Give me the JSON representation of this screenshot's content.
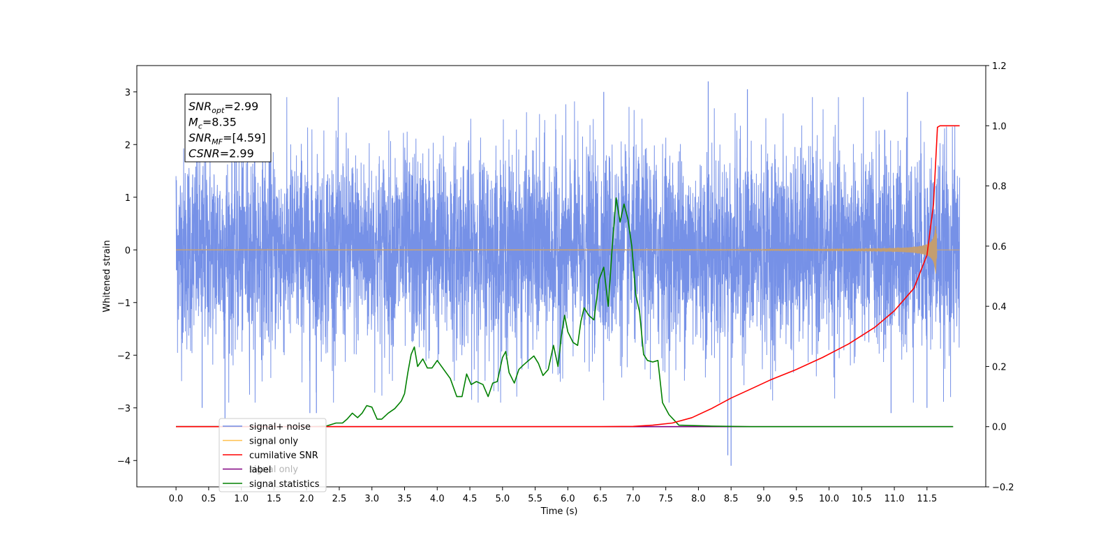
{
  "chart_data": {
    "type": "line",
    "title": "",
    "xlabel": "Time (s)",
    "ylabel": "Whitened strain",
    "y2label": "",
    "xlim": [
      -0.6,
      12.4
    ],
    "ylim": [
      -4.5,
      3.5
    ],
    "y2lim": [
      -0.2,
      1.2
    ],
    "xticks": [
      0.0,
      0.5,
      1.0,
      1.5,
      2.0,
      2.5,
      3.0,
      3.5,
      4.0,
      4.5,
      5.0,
      5.5,
      6.0,
      6.5,
      7.0,
      7.5,
      8.0,
      8.5,
      9.0,
      9.5,
      10.0,
      10.5,
      11.0,
      11.5
    ],
    "xtick_labels": [
      "0.0",
      "0.5",
      "1.0",
      "1.5",
      "2.0",
      "2.5",
      "3.0",
      "3.5",
      "4.0",
      "4.5",
      "5.0",
      "5.5",
      "6.0",
      "6.5",
      "7.0",
      "7.5",
      "8.0",
      "8.5",
      "9.0",
      "9.5",
      "10.0",
      "10.5",
      "11.0",
      "11.5"
    ],
    "yticks": [
      -4,
      -3,
      -2,
      -1,
      0,
      1,
      2,
      3
    ],
    "ytick_labels": [
      "−4",
      "−3",
      "−2",
      "−1",
      "0",
      "1",
      "2",
      "3"
    ],
    "y2ticks": [
      -0.2,
      0.0,
      0.2,
      0.4,
      0.6,
      0.8,
      1.0,
      1.2
    ],
    "y2tick_labels": [
      "−0.2",
      "0.0",
      "0.2",
      "0.4",
      "0.6",
      "0.8",
      "1.0",
      "1.2"
    ],
    "grid": false,
    "legend_position": "lower-left",
    "annotation": {
      "lines": [
        {
          "base": "SNR",
          "sub": "opt",
          "rest": "=2.99"
        },
        {
          "base": "M",
          "sub": "c",
          "rest": "=8.35"
        },
        {
          "base": "SNR",
          "sub": "MF",
          "rest": "=[4.59]"
        },
        {
          "base": "CSNR",
          "sub": "",
          "rest": "=2.99"
        }
      ]
    },
    "series": [
      {
        "name": "signal+ noise",
        "axis": "left",
        "color": "#6f8be6",
        "style": "noise",
        "x_range": [
          0.0,
          12.0
        ],
        "amplitude_envelope": [
          -2.6,
          2.6
        ],
        "extremes": [
          {
            "x": 0.75,
            "y": -3.2
          },
          {
            "x": 2.05,
            "y": -3.1
          },
          {
            "x": 2.15,
            "y": -3.1
          },
          {
            "x": 6.55,
            "y": 3.0
          },
          {
            "x": 8.15,
            "y": 3.2
          },
          {
            "x": 8.45,
            "y": -3.9
          },
          {
            "x": 8.5,
            "y": -4.1
          },
          {
            "x": 8.75,
            "y": 3.05
          },
          {
            "x": 11.2,
            "y": 3.0
          },
          {
            "x": 0.4,
            "y": -3.0
          },
          {
            "x": 10.95,
            "y": -3.1
          },
          {
            "x": 11.5,
            "y": -3.0
          }
        ]
      },
      {
        "name": "signal only",
        "axis": "left",
        "color": "#ffc04d",
        "style": "chirp",
        "x_range": [
          0.0,
          12.0
        ],
        "merger_time": 11.65,
        "peak_amplitude": 0.45
      },
      {
        "name": "cumilative SNR",
        "axis": "right",
        "color": "#ff0000",
        "x": [
          0.0,
          6.5,
          7.0,
          7.3,
          7.6,
          7.9,
          8.2,
          8.5,
          8.8,
          9.1,
          9.5,
          9.9,
          10.3,
          10.7,
          11.0,
          11.3,
          11.5,
          11.6,
          11.66,
          11.7,
          12.0
        ],
        "y": [
          0.0,
          0.0,
          0.001,
          0.005,
          0.012,
          0.03,
          0.06,
          0.095,
          0.125,
          0.155,
          0.19,
          0.23,
          0.275,
          0.33,
          0.385,
          0.46,
          0.57,
          0.74,
          0.995,
          1.0,
          1.0
        ]
      },
      {
        "name": "label",
        "axis": "right",
        "color": "#800080",
        "x": [
          0.0,
          11.9
        ],
        "y": [
          0.0,
          0.0
        ]
      },
      {
        "name": "signal statistics",
        "axis": "right",
        "color": "#008000",
        "x": [
          0.0,
          2.1,
          2.3,
          2.45,
          2.55,
          2.62,
          2.7,
          2.78,
          2.85,
          2.92,
          3.0,
          3.08,
          3.15,
          3.25,
          3.35,
          3.45,
          3.5,
          3.55,
          3.6,
          3.65,
          3.7,
          3.78,
          3.85,
          3.92,
          4.0,
          4.1,
          4.2,
          4.3,
          4.38,
          4.45,
          4.52,
          4.6,
          4.7,
          4.78,
          4.85,
          4.92,
          5.0,
          5.05,
          5.1,
          5.18,
          5.25,
          5.32,
          5.4,
          5.48,
          5.55,
          5.62,
          5.7,
          5.78,
          5.85,
          5.9,
          5.95,
          6.0,
          6.08,
          6.15,
          6.2,
          6.25,
          6.32,
          6.4,
          6.48,
          6.55,
          6.62,
          6.68,
          6.74,
          6.8,
          6.86,
          6.92,
          6.98,
          7.04,
          7.1,
          7.16,
          7.22,
          7.3,
          7.38,
          7.45,
          7.55,
          7.7,
          8.2,
          8.8,
          9.5,
          11.9
        ],
        "y": [
          0.0,
          0.0,
          0.002,
          0.012,
          0.012,
          0.025,
          0.045,
          0.03,
          0.045,
          0.07,
          0.065,
          0.025,
          0.025,
          0.045,
          0.06,
          0.085,
          0.11,
          0.18,
          0.24,
          0.265,
          0.2,
          0.225,
          0.195,
          0.195,
          0.22,
          0.19,
          0.16,
          0.1,
          0.1,
          0.175,
          0.14,
          0.15,
          0.14,
          0.1,
          0.145,
          0.15,
          0.23,
          0.25,
          0.18,
          0.145,
          0.19,
          0.205,
          0.22,
          0.235,
          0.21,
          0.17,
          0.19,
          0.27,
          0.2,
          0.3,
          0.37,
          0.315,
          0.28,
          0.27,
          0.35,
          0.395,
          0.37,
          0.355,
          0.49,
          0.53,
          0.4,
          0.6,
          0.76,
          0.68,
          0.74,
          0.69,
          0.6,
          0.44,
          0.38,
          0.24,
          0.22,
          0.215,
          0.22,
          0.08,
          0.04,
          0.005,
          0.002,
          0.0,
          0.0,
          0.0
        ]
      }
    ],
    "legend": [
      {
        "label": "signal+ noise",
        "color": "#6f8be6"
      },
      {
        "label": "signal only",
        "color": "#ffc04d"
      },
      {
        "label": "cumilative SNR",
        "color": "#ff0000"
      },
      {
        "label": "label",
        "color": "#800080"
      },
      {
        "label": "signal statistics",
        "color": "#008000"
      }
    ],
    "legend_overlap_text": "signal only"
  }
}
